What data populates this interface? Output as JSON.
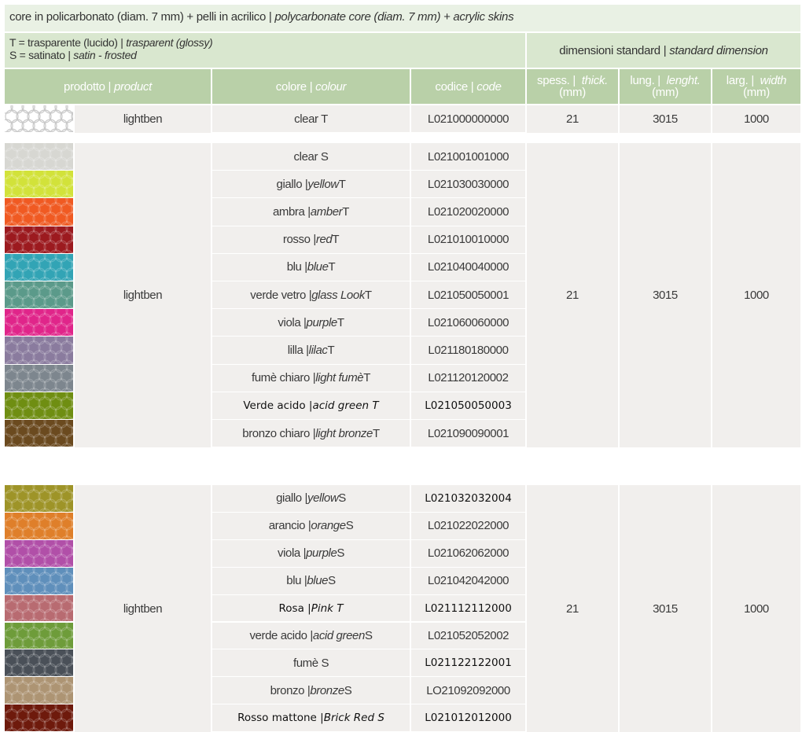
{
  "header": {
    "core_it": "core in policarbonato (diam. 7 mm) + pelli in acrilico | ",
    "core_en": "polycarbonate core (diam. 7 mm) + acrylic skins",
    "legend_t_it": "T = trasparente (lucido) | ",
    "legend_t_en": "trasparent (glossy)",
    "legend_s_it": "S = satinato | ",
    "legend_s_en": "satin - frosted",
    "dimensions_it": "dimensioni standard | ",
    "dimensions_en": "standard dimension"
  },
  "columns": {
    "product_it": "prodotto | ",
    "product_en": "product",
    "colour_it": "colore | ",
    "colour_en": "colour",
    "code_it": "codice | ",
    "code_en": "code",
    "thick_it": "spess. | ",
    "thick_en": "thick.",
    "thick_unit": "(mm)",
    "length_it": "lung. | ",
    "length_en": "lenght.",
    "length_unit": "(mm)",
    "width_it": "larg. | ",
    "width_en": "width",
    "width_unit": "(mm)"
  },
  "groups": [
    {
      "product": "lightben",
      "thickness": "21",
      "length": "3015",
      "width": "1000",
      "rows": [
        {
          "it": "clear T",
          "en": "",
          "suffix": "",
          "code": "L021000000000",
          "swatch": "#ffffff"
        }
      ]
    },
    {
      "product": "lightben",
      "thickness": "21",
      "length": "3015",
      "width": "1000",
      "rows": [
        {
          "it": "clear S",
          "en": "",
          "suffix": "",
          "code": "L021001001000",
          "swatch": "#d7d7d2"
        },
        {
          "it": "giallo | ",
          "en": "yellow",
          "suffix": " T",
          "code": "L021030030000",
          "swatch": "#d2e23a"
        },
        {
          "it": "ambra | ",
          "en": "amber",
          "suffix": " T",
          "code": "L021020020000",
          "swatch": "#f05a22"
        },
        {
          "it": "rosso | ",
          "en": "red",
          "suffix": " T",
          "code": "L021010010000",
          "swatch": "#9c1a1f"
        },
        {
          "it": "blu | ",
          "en": "blue",
          "suffix": " T",
          "code": "L021040040000",
          "swatch": "#32a4b5"
        },
        {
          "it": "verde vetro | ",
          "en": "glass Look",
          "suffix": " T",
          "code": "L021050050001",
          "swatch": "#5b9a8a"
        },
        {
          "it": "viola | ",
          "en": "purple",
          "suffix": " T",
          "code": "L021060060000",
          "swatch": "#e0258a"
        },
        {
          "it": "lilla | ",
          "en": "lilac",
          "suffix": " T",
          "code": "L021180180000",
          "swatch": "#8a7b9e"
        },
        {
          "it": "fumè chiaro | ",
          "en": "light fumè",
          "suffix": " T",
          "code": "L021120120002",
          "swatch": "#7d868e"
        },
        {
          "it": "Verde acido | ",
          "en": "acid green T",
          "suffix": "",
          "code": "L021050050003",
          "swatch": "#6f8e12",
          "plain": true
        },
        {
          "it": "bronzo chiaro | ",
          "en": "light bronze",
          "suffix": " T",
          "code": "L021090090001",
          "swatch": "#6b4a1f"
        }
      ]
    },
    {
      "product": "lightben",
      "thickness": "21",
      "length": "3015",
      "width": "1000",
      "rows": [
        {
          "it": "giallo | ",
          "en": "yellow",
          "suffix": " S",
          "code": "L021032032004",
          "swatch": "#9e9428",
          "code_plain": true
        },
        {
          "it": "arancio | ",
          "en": "orange",
          "suffix": " S",
          "code": "L021022022000",
          "swatch": "#df7f2a"
        },
        {
          "it": "viola | ",
          "en": "purple",
          "suffix": " S",
          "code": "L021062062000",
          "swatch": "#b14fa8"
        },
        {
          "it": "blu | ",
          "en": "blue",
          "suffix": " S",
          "code": "L021042042000",
          "swatch": "#5f8fbb"
        },
        {
          "it": "Rosa | ",
          "en": "Pink T",
          "suffix": "",
          "code": "L021112112000",
          "swatch": "#b86b71",
          "plain": true
        },
        {
          "it": "verde acido | ",
          "en": "acid green",
          "suffix": " S",
          "code": "L021052052002",
          "swatch": "#6e9c3a"
        },
        {
          "it": "fumè S",
          "en": "",
          "suffix": "",
          "code": "L021122122001",
          "swatch": "#4a5058",
          "code_plain": true
        },
        {
          "it": "bronzo | ",
          "en": "bronze",
          "suffix": " S",
          "code": "LO21092092000",
          "swatch": "#ad9473"
        },
        {
          "it": "Rosso mattone  | ",
          "en": "Brick Red S",
          "suffix": "",
          "code": "L021012012000",
          "swatch": "#6e1a0c",
          "plain": true
        }
      ]
    }
  ]
}
